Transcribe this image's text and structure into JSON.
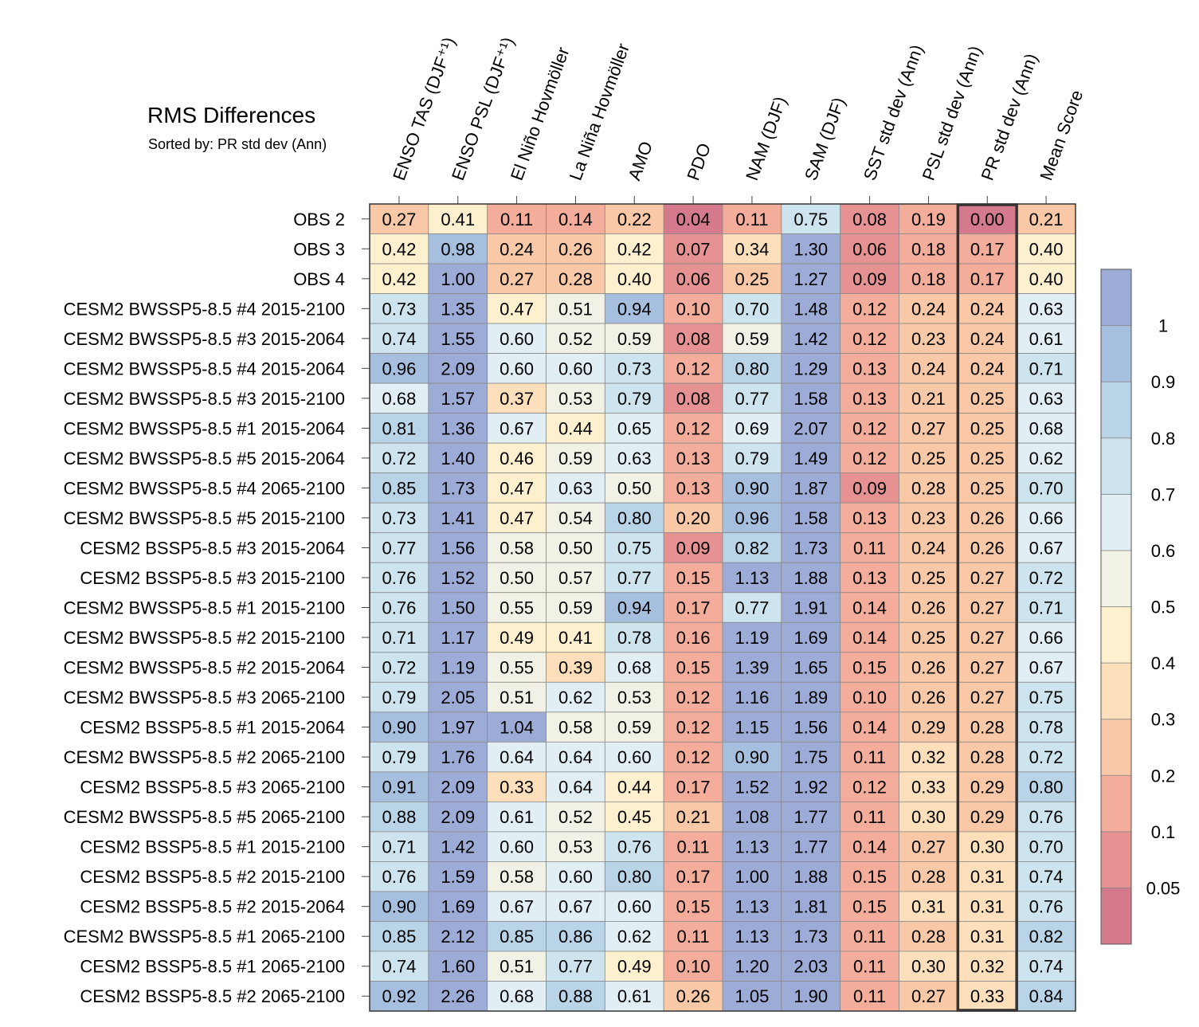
{
  "title": "RMS Differences",
  "subtitle": "Sorted by: PR std dev (Ann)",
  "chart_data": {
    "type": "heatmap",
    "title": "RMS Differences",
    "subtitle": "Sorted by: PR std dev (Ann)",
    "columns": [
      "ENSO TAS (DJF⁺¹)",
      "ENSO PSL (DJF⁺¹)",
      "El Niño Hovmöller",
      "La Niña Hovmöller",
      "AMO",
      "PDO",
      "NAM (DJF)",
      "SAM (DJF)",
      "SST std dev (Ann)",
      "PSL std dev (Ann)",
      "PR std dev (Ann)",
      "Mean Score"
    ],
    "highlighted_column": "PR std dev (Ann)",
    "rows": [
      "OBS 2",
      "OBS 3",
      "OBS 4",
      "CESM2 BWSSP5-8.5 #4 2015-2100",
      "CESM2 BWSSP5-8.5 #3 2015-2064",
      "CESM2 BWSSP5-8.5 #4 2015-2064",
      "CESM2 BWSSP5-8.5 #3 2015-2100",
      "CESM2 BWSSP5-8.5 #1 2015-2064",
      "CESM2 BWSSP5-8.5 #5 2015-2064",
      "CESM2 BWSSP5-8.5 #4 2065-2100",
      "CESM2 BWSSP5-8.5 #5 2015-2100",
      "CESM2 BSSP5-8.5 #3 2015-2064",
      "CESM2 BSSP5-8.5 #3 2015-2100",
      "CESM2 BWSSP5-8.5 #1 2015-2100",
      "CESM2 BWSSP5-8.5 #2 2015-2100",
      "CESM2 BWSSP5-8.5 #2 2015-2064",
      "CESM2 BWSSP5-8.5 #3 2065-2100",
      "CESM2 BSSP5-8.5 #1 2015-2064",
      "CESM2 BWSSP5-8.5 #2 2065-2100",
      "CESM2 BSSP5-8.5 #3 2065-2100",
      "CESM2 BWSSP5-8.5 #5 2065-2100",
      "CESM2 BSSP5-8.5 #1 2015-2100",
      "CESM2 BSSP5-8.5 #2 2015-2100",
      "CESM2 BSSP5-8.5 #2 2015-2064",
      "CESM2 BWSSP5-8.5 #1 2065-2100",
      "CESM2 BSSP5-8.5 #1 2065-2100",
      "CESM2 BSSP5-8.5 #2 2065-2100"
    ],
    "values": [
      [
        0.27,
        0.41,
        0.11,
        0.14,
        0.22,
        0.04,
        0.11,
        0.75,
        0.08,
        0.19,
        0.0,
        0.21
      ],
      [
        0.42,
        0.98,
        0.24,
        0.26,
        0.42,
        0.07,
        0.34,
        1.3,
        0.06,
        0.18,
        0.17,
        0.4
      ],
      [
        0.42,
        1.0,
        0.27,
        0.28,
        0.4,
        0.06,
        0.25,
        1.27,
        0.09,
        0.18,
        0.17,
        0.4
      ],
      [
        0.73,
        1.35,
        0.47,
        0.51,
        0.94,
        0.1,
        0.7,
        1.48,
        0.12,
        0.24,
        0.24,
        0.63
      ],
      [
        0.74,
        1.55,
        0.6,
        0.52,
        0.59,
        0.08,
        0.59,
        1.42,
        0.12,
        0.23,
        0.24,
        0.61
      ],
      [
        0.96,
        2.09,
        0.6,
        0.6,
        0.73,
        0.12,
        0.8,
        1.29,
        0.13,
        0.24,
        0.24,
        0.71
      ],
      [
        0.68,
        1.57,
        0.37,
        0.53,
        0.79,
        0.08,
        0.77,
        1.58,
        0.13,
        0.21,
        0.25,
        0.63
      ],
      [
        0.81,
        1.36,
        0.67,
        0.44,
        0.65,
        0.12,
        0.69,
        2.07,
        0.12,
        0.27,
        0.25,
        0.68
      ],
      [
        0.72,
        1.4,
        0.46,
        0.59,
        0.63,
        0.13,
        0.79,
        1.49,
        0.12,
        0.25,
        0.25,
        0.62
      ],
      [
        0.85,
        1.73,
        0.47,
        0.63,
        0.5,
        0.13,
        0.9,
        1.87,
        0.09,
        0.28,
        0.25,
        0.7
      ],
      [
        0.73,
        1.41,
        0.47,
        0.54,
        0.8,
        0.2,
        0.96,
        1.58,
        0.13,
        0.23,
        0.26,
        0.66
      ],
      [
        0.77,
        1.56,
        0.58,
        0.5,
        0.75,
        0.09,
        0.82,
        1.73,
        0.11,
        0.24,
        0.26,
        0.67
      ],
      [
        0.76,
        1.52,
        0.5,
        0.57,
        0.77,
        0.15,
        1.13,
        1.88,
        0.13,
        0.25,
        0.27,
        0.72
      ],
      [
        0.76,
        1.5,
        0.55,
        0.59,
        0.94,
        0.17,
        0.77,
        1.91,
        0.14,
        0.26,
        0.27,
        0.71
      ],
      [
        0.71,
        1.17,
        0.49,
        0.41,
        0.78,
        0.16,
        1.19,
        1.69,
        0.14,
        0.25,
        0.27,
        0.66
      ],
      [
        0.72,
        1.19,
        0.55,
        0.39,
        0.68,
        0.15,
        1.39,
        1.65,
        0.15,
        0.26,
        0.27,
        0.67
      ],
      [
        0.79,
        2.05,
        0.51,
        0.62,
        0.53,
        0.12,
        1.16,
        1.89,
        0.1,
        0.26,
        0.27,
        0.75
      ],
      [
        0.9,
        1.97,
        1.04,
        0.58,
        0.59,
        0.12,
        1.15,
        1.56,
        0.14,
        0.29,
        0.28,
        0.78
      ],
      [
        0.79,
        1.76,
        0.64,
        0.64,
        0.6,
        0.12,
        0.9,
        1.75,
        0.11,
        0.32,
        0.28,
        0.72
      ],
      [
        0.91,
        2.09,
        0.33,
        0.64,
        0.44,
        0.17,
        1.52,
        1.92,
        0.12,
        0.33,
        0.29,
        0.8
      ],
      [
        0.88,
        2.09,
        0.61,
        0.52,
        0.45,
        0.21,
        1.08,
        1.77,
        0.11,
        0.3,
        0.29,
        0.76
      ],
      [
        0.71,
        1.42,
        0.6,
        0.53,
        0.76,
        0.11,
        1.13,
        1.77,
        0.14,
        0.27,
        0.3,
        0.7
      ],
      [
        0.76,
        1.59,
        0.58,
        0.6,
        0.8,
        0.17,
        1.0,
        1.88,
        0.15,
        0.28,
        0.31,
        0.74
      ],
      [
        0.9,
        1.69,
        0.67,
        0.67,
        0.6,
        0.15,
        1.13,
        1.81,
        0.15,
        0.31,
        0.31,
        0.76
      ],
      [
        0.85,
        2.12,
        0.85,
        0.86,
        0.62,
        0.11,
        1.13,
        1.73,
        0.11,
        0.28,
        0.31,
        0.82
      ],
      [
        0.74,
        1.6,
        0.51,
        0.77,
        0.49,
        0.1,
        1.2,
        2.03,
        0.11,
        0.3,
        0.32,
        0.74
      ],
      [
        0.92,
        2.26,
        0.68,
        0.88,
        0.61,
        0.26,
        1.05,
        1.9,
        0.11,
        0.27,
        0.33,
        0.84
      ]
    ],
    "colorbar": {
      "bounds": [
        0.05,
        0.1,
        0.2,
        0.3,
        0.4,
        0.5,
        0.6,
        0.7,
        0.8,
        0.9,
        1
      ],
      "tick_labels": [
        "0.05",
        "0.1",
        "0.2",
        "0.3",
        "0.4",
        "0.5",
        "0.6",
        "0.7",
        "0.8",
        "0.9",
        "1"
      ],
      "colors": [
        "#d47a8c",
        "#e69192",
        "#f4ac9b",
        "#f9c8a6",
        "#fde0bb",
        "#fdf0cf",
        "#f2f1e6",
        "#e1eff5",
        "#cde4ef",
        "#b9d3e7",
        "#a7bfdf",
        "#9cacd6"
      ],
      "placement": "right"
    }
  }
}
